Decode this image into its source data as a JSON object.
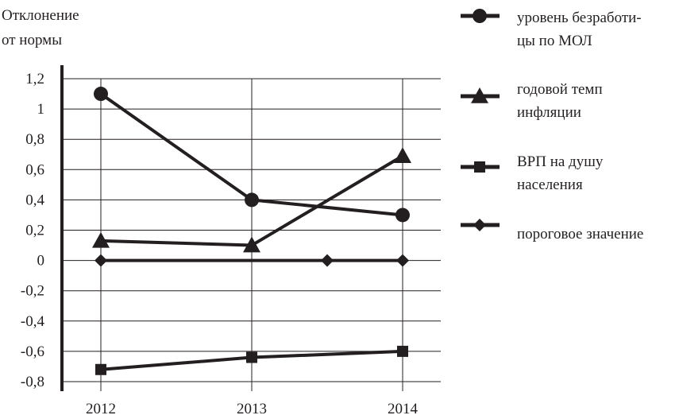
{
  "chart_data": {
    "type": "line",
    "ylabel_lines": [
      "Отклонение",
      "от нормы"
    ],
    "xlabel": "",
    "categories": [
      "2012",
      "2013",
      "2014"
    ],
    "ylim": [
      -0.8,
      1.2
    ],
    "yticks": [
      1.2,
      1,
      0.8,
      0.6,
      0.4,
      0.2,
      0,
      -0.2,
      -0.4,
      -0.6,
      -0.8
    ],
    "ytick_labels": [
      "1,2",
      "1",
      "0,8",
      "0,6",
      "0,4",
      "0,2",
      "0",
      "-0,2",
      "-0,4",
      "-0,6",
      "-0,8"
    ],
    "grid": true,
    "legend_position": "right",
    "series": [
      {
        "key": "unemployment",
        "legend_lines": [
          "уровень безработи-",
          "цы по МОЛ"
        ],
        "marker": "circle",
        "points": [
          {
            "x": "2012",
            "y": 1.1
          },
          {
            "x": "2013",
            "y": 0.4
          },
          {
            "x": "2014",
            "y": 0.3
          }
        ]
      },
      {
        "key": "inflation",
        "legend_lines": [
          "годовой темп",
          "инфляции"
        ],
        "marker": "triangle",
        "points": [
          {
            "x": "2012",
            "y": 0.13
          },
          {
            "x": "2013",
            "y": 0.1
          },
          {
            "x": "2014",
            "y": 0.69
          }
        ]
      },
      {
        "key": "grp",
        "legend_lines": [
          "ВРП на душу",
          "населения"
        ],
        "marker": "square",
        "points": [
          {
            "x": "2012",
            "y": -0.72
          },
          {
            "x": "2013",
            "y": -0.64
          },
          {
            "x": "2014",
            "y": -0.6
          }
        ]
      },
      {
        "key": "threshold",
        "legend_lines": [
          "пороговое значение"
        ],
        "marker": "diamond",
        "points": [
          {
            "x": "2012",
            "y": 0
          },
          {
            "x": "2013.5",
            "y": 0
          },
          {
            "x": "2014",
            "y": 0
          }
        ]
      }
    ],
    "colors": {
      "line": "#231f20",
      "grid": "#231f20",
      "background": "#ffffff"
    }
  }
}
